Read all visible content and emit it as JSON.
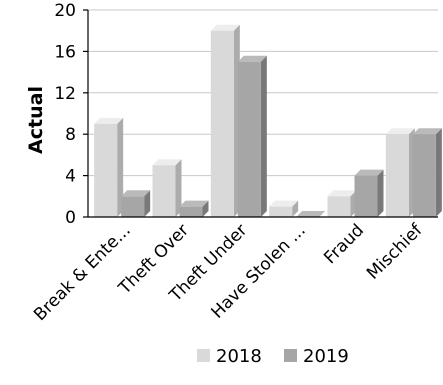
{
  "chart_data": {
    "type": "bar",
    "categories": [
      "Break & Ente...",
      "Theft Over",
      "Theft Under",
      "Have Stolen ...",
      "Fraud",
      "Mischief"
    ],
    "series": [
      {
        "name": "2018",
        "values": [
          9,
          5,
          18,
          1,
          2,
          8
        ],
        "color": "#d9d9d9"
      },
      {
        "name": "2019",
        "values": [
          2,
          1,
          15,
          0,
          4,
          8
        ],
        "color": "#a6a6a6"
      }
    ],
    "xlabel": "",
    "ylabel": "Actual",
    "ylim": [
      0,
      20
    ],
    "yticks": [
      0,
      4,
      8,
      12,
      16,
      20
    ],
    "grid": true,
    "legend_position": "bottom",
    "style": "3d-bar"
  }
}
